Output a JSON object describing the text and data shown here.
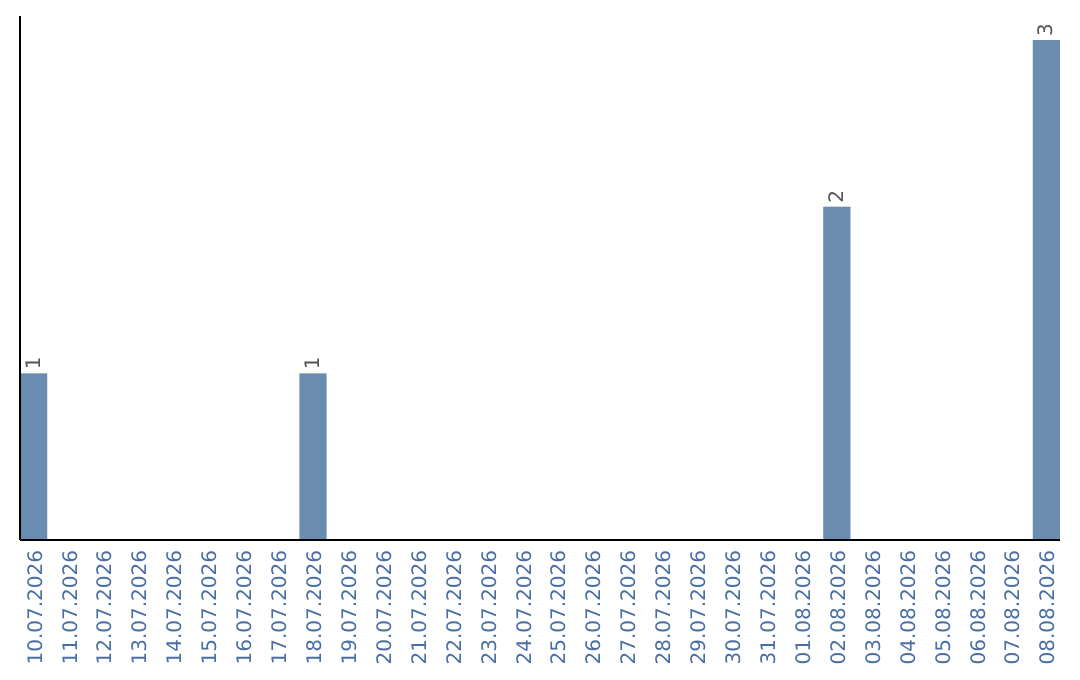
{
  "chart_data": {
    "type": "bar",
    "categories": [
      "10.07.2026",
      "11.07.2026",
      "12.07.2026",
      "13.07.2026",
      "14.07.2026",
      "15.07.2026",
      "16.07.2026",
      "17.07.2026",
      "18.07.2026",
      "19.07.2026",
      "20.07.2026",
      "21.07.2026",
      "22.07.2026",
      "23.07.2026",
      "24.07.2026",
      "25.07.2026",
      "26.07.2026",
      "27.07.2026",
      "28.07.2026",
      "29.07.2026",
      "30.07.2026",
      "31.07.2026",
      "01.08.2026",
      "02.08.2026",
      "03.08.2026",
      "04.08.2026",
      "05.08.2026",
      "06.08.2026",
      "07.08.2026",
      "08.08.2026"
    ],
    "values": [
      1,
      0,
      0,
      0,
      0,
      0,
      0,
      0,
      1,
      0,
      0,
      0,
      0,
      0,
      0,
      0,
      0,
      0,
      0,
      0,
      0,
      0,
      0,
      2,
      0,
      0,
      0,
      0,
      0,
      3
    ],
    "value_labels": [
      "1",
      null,
      null,
      null,
      null,
      null,
      null,
      null,
      "1",
      null,
      null,
      null,
      null,
      null,
      null,
      null,
      null,
      null,
      null,
      null,
      null,
      null,
      null,
      "2",
      null,
      null,
      null,
      null,
      null,
      "3"
    ],
    "color": "#6a8caf",
    "tick_labels": "x"
  }
}
